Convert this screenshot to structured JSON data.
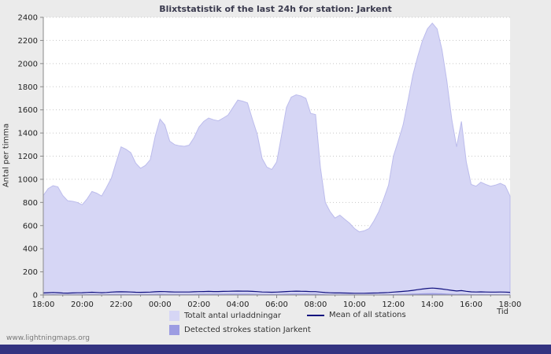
{
  "footer": {
    "link": "www.lightningmaps.org"
  },
  "colors": {
    "background": "#ebebeb",
    "plot_background": "#ffffff",
    "total_fill": "#d6d6f5",
    "total_stroke": "#bcbcec",
    "detected_fill": "#9c9ce2",
    "mean_line": "#10107e",
    "grid": "#c8c8c8",
    "axis": "#8a8a8a",
    "bottom_bar": "#333380"
  },
  "chart_data": {
    "type": "area",
    "title": "Blixtstatistik of the last 24h for station: Jarkent",
    "xlabel": "Tid",
    "ylabel": "Antal per timma",
    "ylim": [
      0,
      2400
    ],
    "ytick_step": 200,
    "grid": "horizontal-dotted",
    "legend_position": "bottom",
    "x_start": "18:00",
    "x_interval_minutes": 15,
    "x_tick_labels": [
      "18:00",
      "20:00",
      "22:00",
      "00:00",
      "02:00",
      "04:00",
      "06:00",
      "08:00",
      "10:00",
      "12:00",
      "14:00",
      "16:00",
      "18:00"
    ],
    "series": [
      {
        "name": "Totalt antal urladdningar",
        "kind": "area",
        "values": [
          860,
          920,
          945,
          935,
          860,
          815,
          810,
          800,
          780,
          830,
          895,
          880,
          855,
          930,
          1010,
          1150,
          1280,
          1260,
          1230,
          1140,
          1095,
          1120,
          1170,
          1370,
          1520,
          1470,
          1330,
          1300,
          1290,
          1285,
          1295,
          1360,
          1450,
          1500,
          1530,
          1515,
          1505,
          1530,
          1555,
          1620,
          1685,
          1675,
          1660,
          1520,
          1390,
          1180,
          1105,
          1085,
          1150,
          1380,
          1620,
          1710,
          1730,
          1720,
          1700,
          1570,
          1560,
          1100,
          800,
          720,
          665,
          690,
          655,
          620,
          575,
          545,
          555,
          575,
          640,
          720,
          830,
          950,
          1200,
          1330,
          1470,
          1680,
          1900,
          2060,
          2200,
          2300,
          2350,
          2300,
          2120,
          1850,
          1520,
          1280,
          1500,
          1150,
          955,
          940,
          975,
          955,
          940,
          950,
          965,
          945,
          855
        ]
      },
      {
        "name": "Detected strokes station Jarkent",
        "kind": "area",
        "values": [
          6,
          6,
          7,
          6,
          5,
          5,
          6,
          6,
          6,
          7,
          7,
          7,
          6,
          7,
          8,
          8,
          9,
          8,
          8,
          7,
          7,
          7,
          8,
          9,
          10,
          9,
          9,
          8,
          8,
          8,
          9,
          9,
          10,
          10,
          10,
          10,
          10,
          10,
          11,
          11,
          11,
          11,
          11,
          10,
          9,
          8,
          8,
          8,
          8,
          9,
          10,
          11,
          11,
          11,
          11,
          10,
          10,
          8,
          6,
          5,
          5,
          5,
          5,
          5,
          4,
          4,
          4,
          4,
          5,
          5,
          6,
          6,
          7,
          8,
          9,
          10,
          12,
          13,
          14,
          15,
          16,
          15,
          14,
          12,
          10,
          9,
          10,
          8,
          7,
          6,
          7,
          6,
          6,
          6,
          6,
          6,
          6
        ]
      },
      {
        "name": "Mean of all stations",
        "kind": "line",
        "values": [
          18,
          20,
          22,
          20,
          17,
          16,
          18,
          19,
          20,
          22,
          24,
          22,
          20,
          22,
          25,
          27,
          28,
          27,
          26,
          24,
          23,
          24,
          25,
          28,
          30,
          29,
          27,
          26,
          26,
          26,
          26,
          28,
          29,
          30,
          31,
          30,
          30,
          31,
          32,
          33,
          34,
          33,
          33,
          31,
          29,
          26,
          25,
          24,
          25,
          27,
          30,
          32,
          33,
          32,
          31,
          29,
          29,
          25,
          21,
          19,
          18,
          18,
          17,
          16,
          15,
          15,
          15,
          16,
          17,
          18,
          20,
          22,
          25,
          28,
          31,
          35,
          40,
          46,
          52,
          57,
          60,
          57,
          52,
          46,
          40,
          35,
          38,
          32,
          27,
          26,
          27,
          26,
          25,
          25,
          26,
          25,
          23
        ]
      }
    ]
  }
}
